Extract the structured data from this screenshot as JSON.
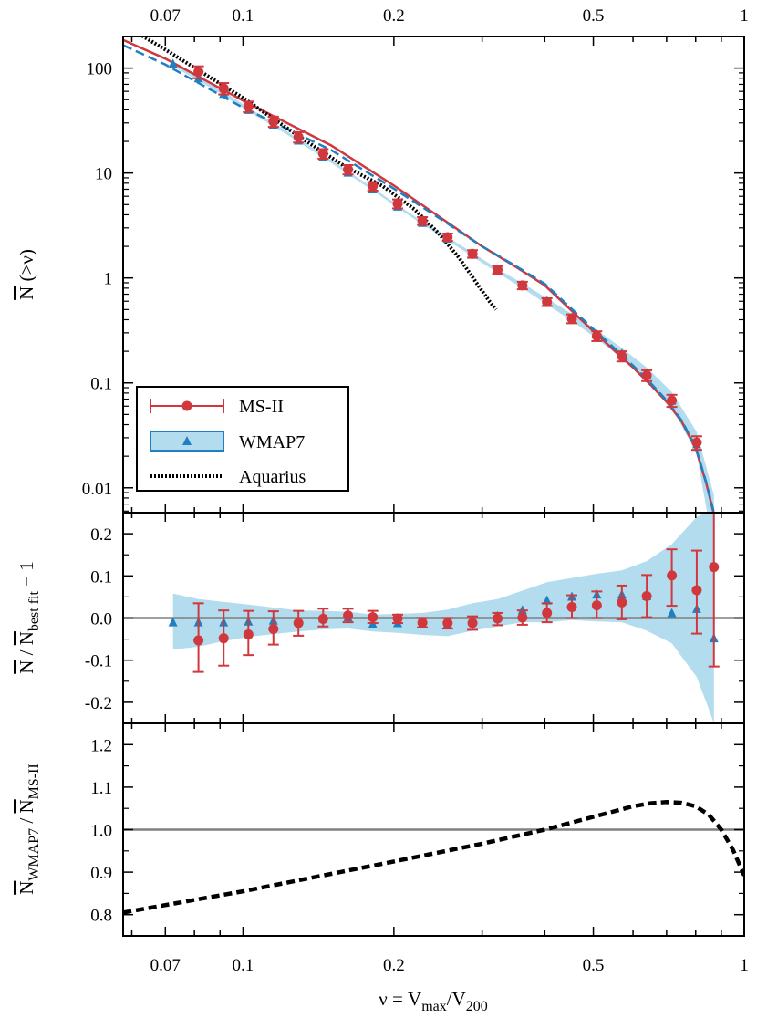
{
  "chart_data": {
    "type": "line",
    "x_scale": "log",
    "x_range": [
      0.05766,
      1.0
    ],
    "x_ticks": [
      {
        "value": 0.07,
        "label": "0.07"
      },
      {
        "value": 0.1,
        "label": "0.1"
      },
      {
        "value": 0.2,
        "label": "0.2"
      },
      {
        "value": 0.5,
        "label": "0.5"
      },
      {
        "value": 1.0,
        "label": "1"
      }
    ],
    "x_minor_ticks": [
      0.06,
      0.08,
      0.09,
      0.3,
      0.4,
      0.6,
      0.7,
      0.8,
      0.9
    ],
    "xlabel": {
      "text": "ν = V",
      "sub1": "max",
      "mid": "/V",
      "sub2": "200"
    },
    "legend": {
      "placement": "lower-left of top panel",
      "entries": [
        {
          "key": "ms2",
          "label": "MS-II",
          "color": "#d0383d",
          "marker": "circle"
        },
        {
          "key": "wmap7",
          "label": "WMAP7",
          "color": "#1f7fc0",
          "fill": "#b3dcef",
          "marker": "triangle"
        },
        {
          "key": "aquarius",
          "label": "Aquarius",
          "color": "#000000",
          "style": "dotted"
        }
      ]
    },
    "panels": [
      {
        "id": "top",
        "y_scale": "log",
        "y_range": [
          0.0058,
          200
        ],
        "ylabel": {
          "overline": "N",
          "rest": " (>ν)"
        },
        "y_ticks": [
          {
            "value": 100,
            "label": "100"
          },
          {
            "value": 10,
            "label": "10"
          },
          {
            "value": 1,
            "label": "1"
          },
          {
            "value": 0.1,
            "label": "0.1"
          },
          {
            "value": 0.01,
            "label": "0.01"
          }
        ],
        "series": [
          {
            "name": "MS-II",
            "kind": "points-with-errorbars",
            "x": [
              0.0815,
              0.0915,
              0.1025,
              0.115,
              0.129,
              0.1445,
              0.162,
              0.1815,
              0.2035,
              0.228,
              0.256,
              0.287,
              0.322,
              0.361,
              0.404,
              0.453,
              0.508,
              0.57,
              0.639,
              0.717,
              0.804
            ],
            "y": [
              92,
              64,
              43,
              31,
              22,
              15.3,
              10.8,
              7.5,
              5.1,
              3.5,
              2.45,
              1.7,
              1.2,
              0.85,
              0.59,
              0.41,
              0.28,
              0.18,
              0.118,
              0.068,
              0.027
            ],
            "yerr_low": [
              80,
              56,
              38,
              27.5,
              19.5,
              13.7,
              9.7,
              6.8,
              4.6,
              3.2,
              2.25,
              1.56,
              1.1,
              0.78,
              0.54,
              0.37,
              0.25,
              0.16,
              0.104,
              0.059,
              0.023
            ],
            "yerr_high": [
              104,
              72,
              48,
              34.5,
              24.5,
              16.9,
              11.9,
              8.2,
              5.6,
              3.8,
              2.65,
              1.84,
              1.3,
              0.92,
              0.64,
              0.45,
              0.31,
              0.2,
              0.132,
              0.077,
              0.031
            ]
          },
          {
            "name": "MS-II fit",
            "kind": "line",
            "x": [
              0.0577,
              0.07,
              0.1,
              0.15,
              0.2,
              0.25,
              0.3,
              0.35,
              0.4,
              0.5,
              0.55,
              0.6,
              0.65,
              0.7,
              0.75,
              0.8,
              0.84,
              0.87,
              0.885
            ],
            "y": [
              185,
              123,
              49,
              18.3,
              7.6,
              3.65,
              2.0,
              1.28,
              0.85,
              0.31,
              0.205,
              0.14,
              0.096,
              0.066,
              0.043,
              0.024,
              0.011,
              0.0056,
              0.0025
            ]
          },
          {
            "name": "WMAP7",
            "kind": "points",
            "x": [
              0.0725,
              0.0815,
              0.0915,
              0.1025,
              0.115,
              0.129,
              0.1445,
              0.162,
              0.1815,
              0.2035,
              0.228,
              0.256,
              0.287,
              0.322,
              0.361,
              0.404,
              0.453,
              0.508,
              0.57,
              0.639,
              0.717,
              0.804,
              0.87
            ],
            "y": [
              110,
              80,
              57,
              40,
              29,
              20.4,
              14.4,
              10.1,
              7.0,
              4.8,
              3.35,
              2.37,
              1.67,
              1.17,
              0.84,
              0.6,
              0.42,
              0.29,
              0.19,
              0.12,
              0.068,
              0.026,
              0.004
            ]
          },
          {
            "name": "WMAP7 fit",
            "kind": "line",
            "x": [
              0.0577,
              0.07,
              0.1,
              0.15,
              0.2,
              0.25,
              0.3,
              0.35,
              0.4,
              0.5,
              0.55,
              0.6,
              0.65,
              0.7,
              0.75,
              0.8,
              0.84,
              0.87,
              0.885
            ],
            "y": [
              165,
              108,
              42,
              16.5,
              7.1,
              3.55,
              2.0,
              1.3,
              0.88,
              0.325,
              0.215,
              0.146,
              0.1,
              0.068,
              0.044,
              0.0245,
              0.0112,
              0.0058,
              0.0025
            ]
          },
          {
            "name": "WMAP7 band",
            "kind": "band",
            "x": [
              0.0725,
              0.0815,
              0.0915,
              0.1025,
              0.115,
              0.129,
              0.1445,
              0.162,
              0.1815,
              0.2035,
              0.228,
              0.256,
              0.287,
              0.322,
              0.361,
              0.404,
              0.453,
              0.508,
              0.57,
              0.639,
              0.717,
              0.804,
              0.87
            ],
            "y_low": [
              104,
              76,
              54.5,
              38.5,
              28,
              19.8,
              14,
              9.8,
              6.8,
              4.66,
              3.24,
              2.28,
              1.6,
              1.12,
              0.8,
              0.56,
              0.39,
              0.265,
              0.17,
              0.105,
              0.058,
              0.021,
              0.0025
            ],
            "y_high": [
              116,
              84,
              60,
              42,
              30.2,
              21.2,
              14.9,
              10.4,
              7.25,
              4.95,
              3.46,
              2.46,
              1.74,
              1.22,
              0.89,
              0.64,
              0.455,
              0.32,
              0.215,
              0.14,
              0.082,
              0.034,
              0.0085
            ]
          },
          {
            "name": "Aquarius",
            "kind": "line",
            "x": [
              0.0577,
              0.07,
              0.1,
              0.13,
              0.16,
              0.19,
              0.22,
              0.245,
              0.27,
              0.29,
              0.31,
              0.32
            ],
            "y": [
              260,
              150,
              52,
              22,
              11.5,
              7.5,
              4.5,
              2.7,
              1.55,
              0.95,
              0.6,
              0.5
            ]
          }
        ]
      },
      {
        "id": "middle",
        "y_scale": "linear",
        "y_range": [
          -0.25,
          0.25
        ],
        "ylabel": {
          "overline1": "N",
          "mid": " / ",
          "overline2": "N",
          "sub": "best fit",
          "rest": " − 1"
        },
        "y_ticks": [
          {
            "value": 0.2,
            "label": "0.2"
          },
          {
            "value": 0.1,
            "label": "0.1"
          },
          {
            "value": 0.0,
            "label": "0.0"
          },
          {
            "value": -0.1,
            "label": "-0.1"
          },
          {
            "value": -0.2,
            "label": "-0.2"
          }
        ],
        "reference_line": 0.0,
        "series": [
          {
            "name": "MS-II",
            "kind": "points-with-errorbars",
            "x": [
              0.0815,
              0.0915,
              0.1025,
              0.115,
              0.129,
              0.1445,
              0.162,
              0.1815,
              0.2035,
              0.228,
              0.256,
              0.287,
              0.322,
              0.361,
              0.404,
              0.453,
              0.508,
              0.57,
              0.639,
              0.717,
              0.804,
              0.87
            ],
            "y": [
              -0.053,
              -0.048,
              -0.039,
              -0.026,
              -0.012,
              -0.002,
              0.006,
              0.002,
              -0.001,
              -0.011,
              -0.012,
              -0.012,
              -0.001,
              0.001,
              0.012,
              0.026,
              0.03,
              0.037,
              0.052,
              0.101,
              0.066,
              0.121
            ],
            "yerr_low": [
              -0.128,
              -0.113,
              -0.088,
              -0.063,
              -0.042,
              -0.02,
              -0.01,
              -0.012,
              -0.012,
              -0.022,
              -0.025,
              -0.028,
              -0.017,
              -0.016,
              -0.01,
              0.0,
              0.0,
              -0.003,
              0.002,
              0.029,
              -0.037,
              -0.115
            ],
            "yerr_high": [
              0.035,
              0.018,
              0.017,
              0.016,
              0.017,
              0.022,
              0.022,
              0.017,
              0.008,
              0.0,
              0.0,
              0.004,
              0.012,
              0.018,
              0.035,
              0.054,
              0.063,
              0.077,
              0.102,
              0.163,
              0.16,
              0.26
            ]
          },
          {
            "name": "WMAP7",
            "kind": "points",
            "x": [
              0.0725,
              0.0815,
              0.0915,
              0.1025,
              0.115,
              0.129,
              0.1445,
              0.162,
              0.1815,
              0.2035,
              0.228,
              0.256,
              0.287,
              0.322,
              0.361,
              0.404,
              0.453,
              0.508,
              0.57,
              0.639,
              0.717,
              0.804,
              0.87
            ],
            "y": [
              -0.01,
              -0.01,
              -0.01,
              -0.008,
              -0.006,
              -0.007,
              -0.001,
              0.002,
              -0.014,
              -0.012,
              -0.014,
              -0.013,
              -0.006,
              0.005,
              0.019,
              0.042,
              0.051,
              0.056,
              0.056,
              0.052,
              0.012,
              0.022,
              -0.048
            ]
          },
          {
            "name": "WMAP7 band",
            "kind": "band",
            "x": [
              0.0725,
              0.0815,
              0.0915,
              0.1025,
              0.115,
              0.129,
              0.1445,
              0.162,
              0.1815,
              0.2035,
              0.228,
              0.256,
              0.287,
              0.322,
              0.361,
              0.404,
              0.453,
              0.508,
              0.57,
              0.639,
              0.717,
              0.804,
              0.84,
              0.87
            ],
            "y_low": [
              -0.075,
              -0.068,
              -0.055,
              -0.045,
              -0.038,
              -0.032,
              -0.027,
              -0.025,
              -0.032,
              -0.035,
              -0.04,
              -0.043,
              -0.03,
              -0.02,
              -0.01,
              -0.01,
              -0.005,
              -0.008,
              -0.01,
              -0.03,
              -0.06,
              -0.14,
              -0.2,
              -0.25
            ],
            "y_high": [
              0.058,
              0.045,
              0.038,
              0.032,
              0.025,
              0.018,
              0.017,
              0.015,
              0.008,
              0.01,
              0.012,
              0.02,
              0.035,
              0.045,
              0.065,
              0.085,
              0.095,
              0.105,
              0.113,
              0.135,
              0.175,
              0.24,
              0.25,
              0.25
            ]
          }
        ]
      },
      {
        "id": "bottom",
        "y_scale": "linear",
        "y_range": [
          0.75,
          1.25
        ],
        "ylabel": {
          "overline1": "N",
          "sub1": "WMAP7",
          "mid": " / ",
          "overline2": "N",
          "sub2": "MS-II"
        },
        "y_ticks": [
          {
            "value": 1.2,
            "label": "1.2"
          },
          {
            "value": 1.1,
            "label": "1.1"
          },
          {
            "value": 1.0,
            "label": "1.0"
          },
          {
            "value": 0.9,
            "label": "0.9"
          },
          {
            "value": 0.8,
            "label": "0.8"
          }
        ],
        "reference_line": 1.0,
        "series": [
          {
            "name": "ratio",
            "kind": "line",
            "style": "dashed",
            "x": [
              0.0577,
              0.1,
              0.2,
              0.3,
              0.4,
              0.5,
              0.6,
              0.65,
              0.7,
              0.75,
              0.8,
              0.85,
              0.9,
              0.95,
              1.0
            ],
            "y": [
              0.805,
              0.855,
              0.925,
              0.967,
              1.0,
              1.03,
              1.055,
              1.062,
              1.065,
              1.063,
              1.055,
              1.035,
              1.0,
              0.952,
              0.892
            ]
          }
        ]
      }
    ]
  }
}
